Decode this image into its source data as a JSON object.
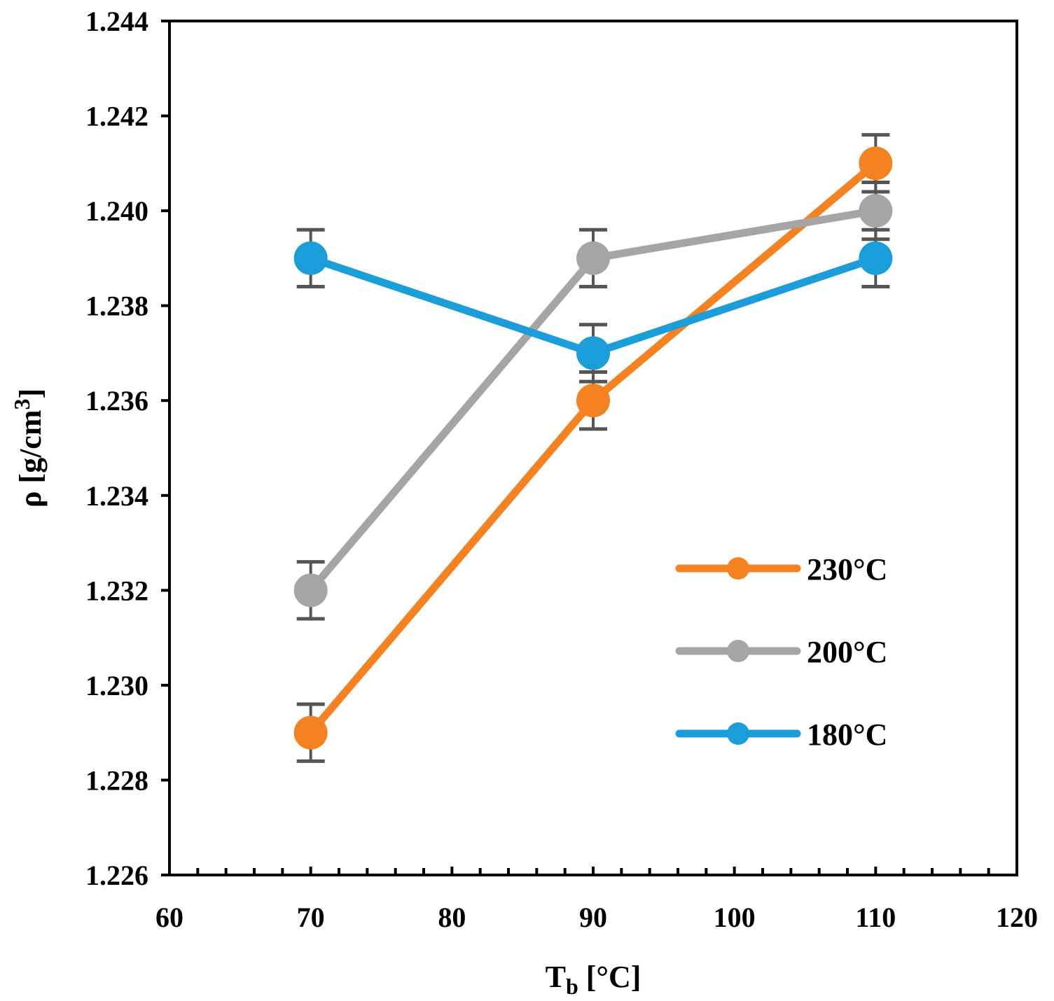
{
  "chart_data": {
    "type": "line",
    "xlabel": {
      "main": "T",
      "sub": "b",
      "rest": " [°C]"
    },
    "ylabel": {
      "main": "ρ [g/cm",
      "sup": "3",
      "rest": "]"
    },
    "xlim": [
      60,
      120
    ],
    "ylim": [
      1.226,
      1.244
    ],
    "x_ticks": [
      "60",
      "70",
      "80",
      "90",
      "100",
      "110",
      "120"
    ],
    "y_ticks": [
      "1.226",
      "1.228",
      "1.230",
      "1.232",
      "1.234",
      "1.236",
      "1.238",
      "1.240",
      "1.242",
      "1.244"
    ],
    "grid": false,
    "legend_position": "center-right",
    "x": [
      70,
      90,
      110
    ],
    "series": [
      {
        "name": "230°C",
        "color": "#F58220",
        "values": [
          1.229,
          1.236,
          1.241
        ],
        "error": [
          0.0006,
          0.0006,
          0.0006
        ]
      },
      {
        "name": "200°C",
        "color": "#A5A5A5",
        "values": [
          1.232,
          1.239,
          1.24
        ],
        "error": [
          0.0006,
          0.0006,
          0.0006
        ]
      },
      {
        "name": "180°C",
        "color": "#1B9DD9",
        "values": [
          1.239,
          1.237,
          1.239
        ],
        "error": [
          0.0006,
          0.0006,
          0.0006
        ]
      }
    ]
  }
}
